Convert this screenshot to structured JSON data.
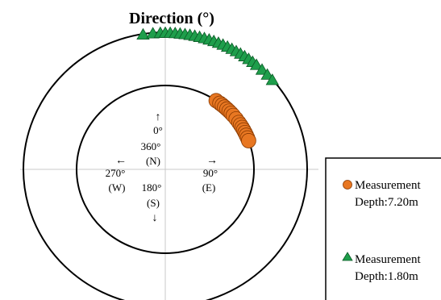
{
  "chart_data": {
    "type": "scatter",
    "projection": "polar",
    "title": "Direction (°)",
    "angle_unit": "degrees",
    "angle_convention": "clockwise from north",
    "rings": [
      "Measurement Depth:7.20m (inner)",
      "Measurement Depth:1.80m (outer)"
    ],
    "compass": {
      "north": {
        "arrow": "↑",
        "deg1": "0°",
        "deg2": "360°",
        "abbr": "(N)"
      },
      "east": {
        "arrow": "→",
        "deg": "90°",
        "abbr": "(E)"
      },
      "south": {
        "arrow": "↓",
        "deg": "180°",
        "abbr": "(S)"
      },
      "west": {
        "arrow": "←",
        "deg": "270°",
        "abbr": "(W)"
      }
    },
    "series": [
      {
        "name": "Measurement Depth:7.20m",
        "name_line1": "Measurement",
        "name_line2": "Depth:7.20m",
        "marker": "circle",
        "color": "#E87722",
        "ring": "inner",
        "angles": [
          35,
          38,
          40,
          42,
          44,
          46,
          48,
          50,
          53,
          56,
          58,
          60,
          62,
          64,
          66,
          68,
          70
        ]
      },
      {
        "name": "Measurement Depth:1.80m",
        "name_line1": "Measurement",
        "name_line2": "Depth:1.80m",
        "marker": "triangle",
        "color": "#1E9E4B",
        "ring": "outer",
        "angles": [
          -9,
          -5,
          -2,
          0,
          2,
          4,
          6,
          8,
          10,
          12,
          14,
          16,
          18,
          20,
          22,
          24,
          26,
          28,
          30,
          32,
          34,
          36,
          38,
          40,
          43,
          46,
          49
        ]
      }
    ],
    "grid": false,
    "legend": "bottom-right"
  }
}
